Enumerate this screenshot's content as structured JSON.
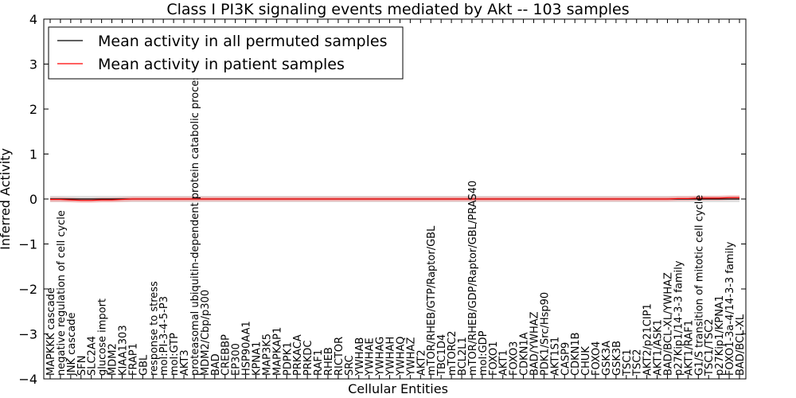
{
  "chart_data": {
    "type": "line",
    "title": "Class I PI3K signaling events mediated by Akt -- 103 samples",
    "xlabel": "Cellular Entities",
    "ylabel": "Inferred Activity",
    "ylim": [
      -4,
      4
    ],
    "yticks": [
      "4",
      "3",
      "2",
      "1",
      "0",
      "−1",
      "−2",
      "−3",
      "−4"
    ],
    "ytick_values": [
      4,
      3,
      2,
      1,
      0,
      -1,
      -2,
      -3,
      -4
    ],
    "legend": {
      "placement": "top-left",
      "entries": [
        {
          "label": "Mean activity in all permuted samples",
          "color": "#000000"
        },
        {
          "label": "Mean activity in patient samples",
          "color": "#ff0000"
        }
      ]
    },
    "categories": [
      "MAPKKK cascade",
      "negative regulation of cell cycle",
      "JNK cascade",
      "SFN",
      "SLC2A4",
      "glucose import",
      "MDM2",
      "KIAA1303",
      "FRAP1",
      "GBL",
      "response to stress",
      "mol:PI-3-4-5-P3",
      "mol:GTP",
      "AKT3",
      "proteasomal ubiquitin-dependent protein catabolic process",
      "MDM2/Cbp/p300",
      "BAD",
      "CREBBP",
      "EP300",
      "HSP90AA1",
      "KPNA1",
      "MAP3K5",
      "MAPKAP1",
      "PDPK1",
      "PRKACA",
      "PRKDC",
      "RAF1",
      "RHEB",
      "RICTOR",
      "SRC",
      "YWHAB",
      "YWHAE",
      "YWHAG",
      "YWHAH",
      "YWHAQ",
      "YWHAZ",
      "AKT2",
      "mTOR/RHEB/GTP/Raptor/GBL",
      "TBC1D4",
      "mTORC2",
      "BCL2L1",
      "mTOR/RHEB/GDP/Raptor/GBL/PRAS40",
      "mol:GDP",
      "FOXO1",
      "AKT1",
      "FOXO3",
      "CDKN1A",
      "BAD/YWHAZ",
      "PDK1/Src/Hsp90",
      "AKT1S1",
      "CASP9",
      "CDKN1B",
      "CHUK",
      "FOXO4",
      "GSK3A",
      "GSK3B",
      "TSC1",
      "TSC2",
      "AKT2/p21CIP1",
      "AKT1/ASK1",
      "BAD/BCL-XL/YWHAZ",
      "p27Kip1/14-3-3 family",
      "AKT1/RAF1",
      "G1/S transition of mitotic cell cycle",
      "TSC1/TSC2",
      "p27Kip1/KPNA1",
      "FOXO1-3a-4/14-3-3 family",
      "BAD/BCL-XL"
    ],
    "series": [
      {
        "name": "Mean activity in all permuted samples",
        "color": "#000000",
        "values": [
          0.0,
          0.0,
          0.0,
          0.0,
          0.0,
          0.0,
          0.0,
          0.0,
          0.0,
          0.0,
          0.0,
          0.0,
          0.0,
          0.0,
          0.0,
          0.0,
          0.0,
          0.0,
          0.0,
          0.0,
          0.0,
          0.0,
          0.0,
          0.0,
          0.0,
          0.0,
          0.0,
          0.0,
          0.0,
          0.0,
          0.0,
          0.0,
          0.0,
          0.0,
          0.0,
          0.0,
          0.0,
          0.0,
          0.0,
          0.0,
          0.0,
          0.0,
          0.0,
          0.0,
          0.0,
          0.0,
          0.0,
          0.0,
          0.0,
          0.0,
          0.0,
          0.0,
          0.0,
          0.0,
          0.0,
          0.0,
          0.0,
          0.0,
          0.0,
          0.0,
          0.0,
          0.0,
          0.0,
          0.0,
          0.0,
          0.0,
          0.0,
          0.0
        ],
        "band": 0.07
      },
      {
        "name": "Mean activity in patient samples",
        "color": "#ff0000",
        "values": [
          -0.01,
          -0.01,
          -0.02,
          -0.03,
          -0.03,
          -0.02,
          -0.02,
          -0.01,
          0.0,
          0.0,
          0.0,
          0.0,
          0.0,
          0.0,
          0.0,
          0.0,
          0.0,
          0.0,
          0.0,
          0.0,
          0.0,
          0.0,
          0.0,
          0.0,
          0.0,
          0.0,
          0.0,
          0.0,
          0.0,
          0.0,
          0.0,
          0.0,
          0.0,
          0.0,
          0.0,
          0.0,
          0.0,
          0.0,
          0.0,
          0.0,
          0.0,
          0.0,
          0.0,
          0.0,
          0.0,
          0.0,
          0.0,
          0.0,
          0.0,
          0.0,
          0.0,
          0.0,
          0.0,
          0.0,
          0.0,
          0.0,
          0.0,
          0.0,
          0.0,
          0.0,
          0.0,
          0.01,
          0.01,
          0.02,
          0.02,
          0.02,
          0.03,
          0.03
        ],
        "band": 0.05
      }
    ]
  }
}
